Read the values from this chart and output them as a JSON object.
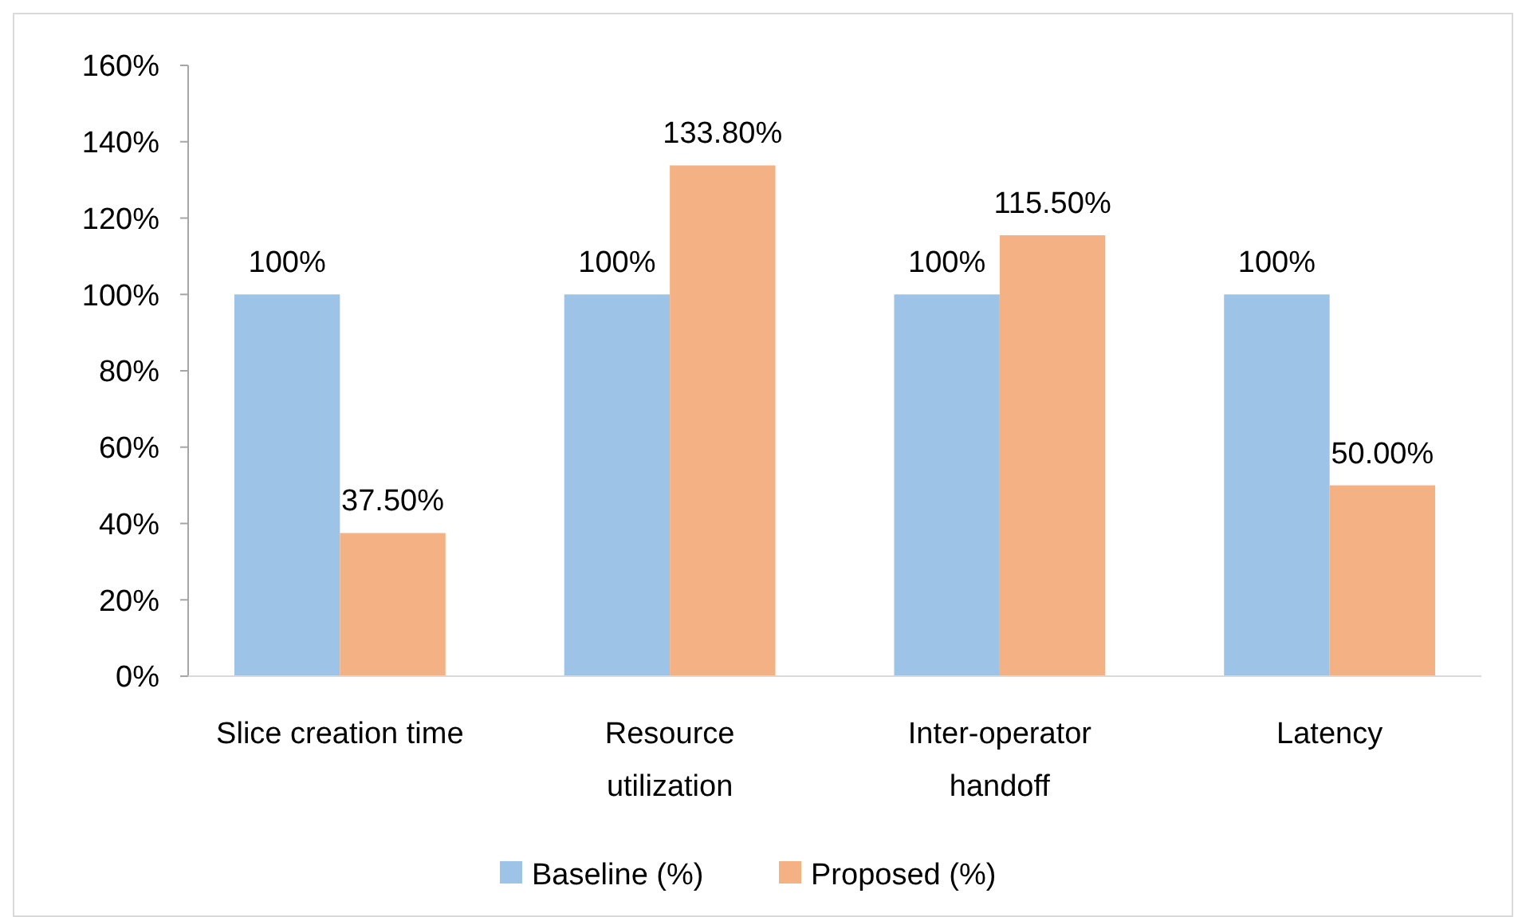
{
  "chart_data": {
    "type": "bar",
    "categories": [
      "Slice creation time",
      "Resource utilization",
      "Inter-operator handoff",
      "Latency"
    ],
    "series": [
      {
        "name": "Baseline (%)",
        "color": "#9dc3e6",
        "values": [
          100,
          100,
          100,
          100
        ],
        "value_labels": [
          "100%",
          "100%",
          "100%",
          "100%"
        ]
      },
      {
        "name": "Proposed (%)",
        "color": "#f4b183",
        "values": [
          37.5,
          133.8,
          115.5,
          50
        ],
        "value_labels": [
          "37.50%",
          "133.80%",
          "115.50%",
          "50.00%"
        ]
      }
    ],
    "ylim": [
      0,
      160
    ],
    "yticks": [
      {
        "value": 0,
        "label": "0%"
      },
      {
        "value": 20,
        "label": "20%"
      },
      {
        "value": 40,
        "label": "40%"
      },
      {
        "value": 60,
        "label": "60%"
      },
      {
        "value": 80,
        "label": "80%"
      },
      {
        "value": 100,
        "label": "100%"
      },
      {
        "value": 120,
        "label": "120%"
      },
      {
        "value": 140,
        "label": "140%"
      },
      {
        "value": 160,
        "label": "160%"
      }
    ],
    "grid": false,
    "legend": "bottom"
  }
}
